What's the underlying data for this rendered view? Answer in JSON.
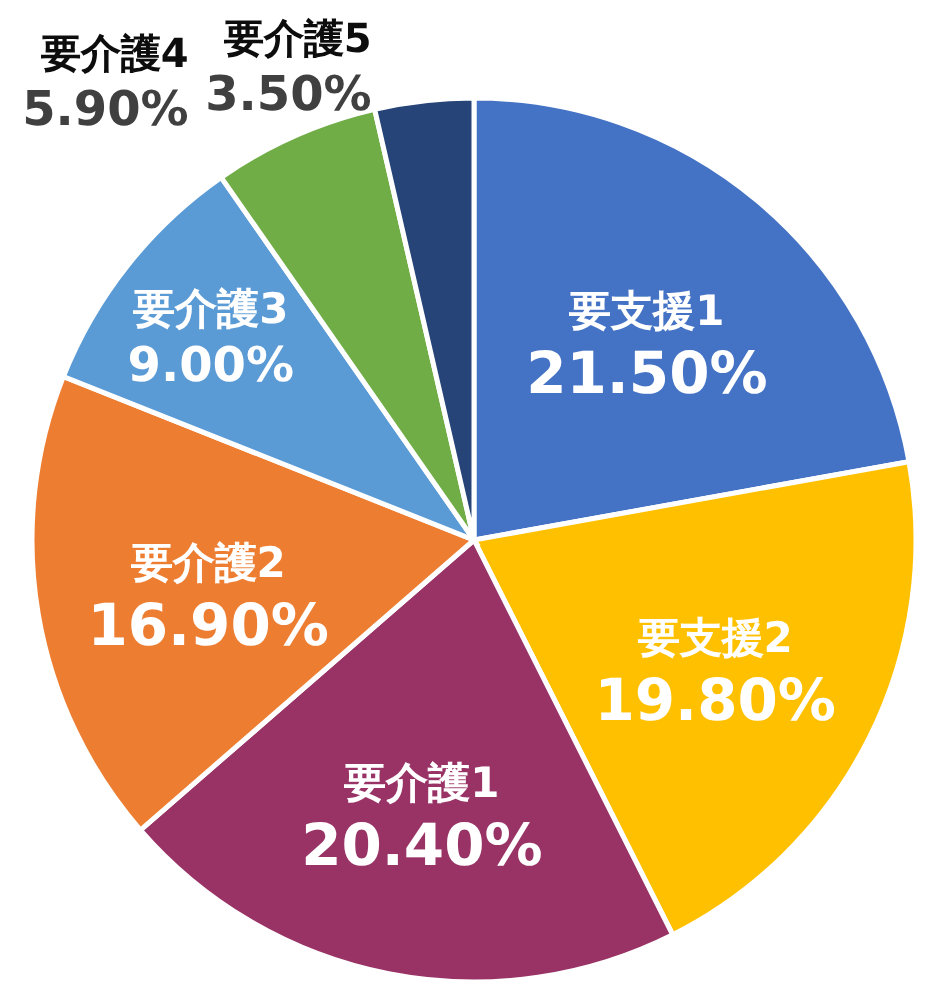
{
  "chart_data": {
    "type": "pie",
    "categories": [
      "要支援1",
      "要支援2",
      "要介護1",
      "要介護2",
      "要介護3",
      "要介護4",
      "要介護5"
    ],
    "values": [
      21.5,
      19.8,
      20.4,
      16.9,
      9.0,
      5.9,
      3.5
    ],
    "colors": [
      "#4472c4",
      "#ffc000",
      "#993366",
      "#ed7d31",
      "#5b9bd5",
      "#70ad47",
      "#264478"
    ],
    "value_labels": [
      "21.50%",
      "19.80%",
      "20.40%",
      "16.90%",
      "9.00%",
      "5.90%",
      "3.50%"
    ]
  }
}
